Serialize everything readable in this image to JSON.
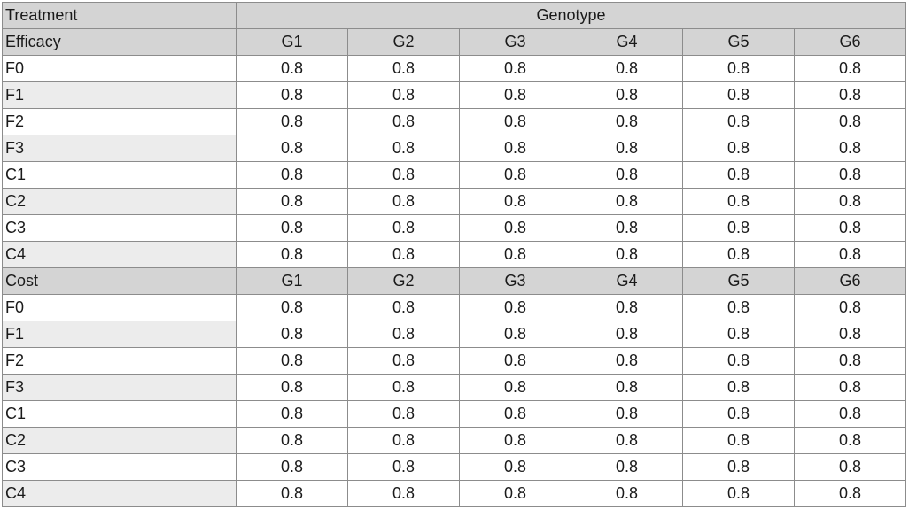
{
  "header": {
    "treatment_label": "Treatment",
    "genotype_label": "Genotype"
  },
  "sections": [
    {
      "title": "Efficacy",
      "columns": [
        "G1",
        "G2",
        "G3",
        "G4",
        "G5",
        "G6"
      ],
      "rows": [
        {
          "label": "F0",
          "values": [
            "0.8",
            "0.8",
            "0.8",
            "0.8",
            "0.8",
            "0.8"
          ]
        },
        {
          "label": "F1",
          "values": [
            "0.8",
            "0.8",
            "0.8",
            "0.8",
            "0.8",
            "0.8"
          ]
        },
        {
          "label": "F2",
          "values": [
            "0.8",
            "0.8",
            "0.8",
            "0.8",
            "0.8",
            "0.8"
          ]
        },
        {
          "label": "F3",
          "values": [
            "0.8",
            "0.8",
            "0.8",
            "0.8",
            "0.8",
            "0.8"
          ]
        },
        {
          "label": "C1",
          "values": [
            "0.8",
            "0.8",
            "0.8",
            "0.8",
            "0.8",
            "0.8"
          ]
        },
        {
          "label": "C2",
          "values": [
            "0.8",
            "0.8",
            "0.8",
            "0.8",
            "0.8",
            "0.8"
          ]
        },
        {
          "label": "C3",
          "values": [
            "0.8",
            "0.8",
            "0.8",
            "0.8",
            "0.8",
            "0.8"
          ]
        },
        {
          "label": "C4",
          "values": [
            "0.8",
            "0.8",
            "0.8",
            "0.8",
            "0.8",
            "0.8"
          ]
        }
      ]
    },
    {
      "title": "Cost",
      "columns": [
        "G1",
        "G2",
        "G3",
        "G4",
        "G5",
        "G6"
      ],
      "rows": [
        {
          "label": "F0",
          "values": [
            "0.8",
            "0.8",
            "0.8",
            "0.8",
            "0.8",
            "0.8"
          ]
        },
        {
          "label": "F1",
          "values": [
            "0.8",
            "0.8",
            "0.8",
            "0.8",
            "0.8",
            "0.8"
          ]
        },
        {
          "label": "F2",
          "values": [
            "0.8",
            "0.8",
            "0.8",
            "0.8",
            "0.8",
            "0.8"
          ]
        },
        {
          "label": "F3",
          "values": [
            "0.8",
            "0.8",
            "0.8",
            "0.8",
            "0.8",
            "0.8"
          ]
        },
        {
          "label": "C1",
          "values": [
            "0.8",
            "0.8",
            "0.8",
            "0.8",
            "0.8",
            "0.8"
          ]
        },
        {
          "label": "C2",
          "values": [
            "0.8",
            "0.8",
            "0.8",
            "0.8",
            "0.8",
            "0.8"
          ]
        },
        {
          "label": "C3",
          "values": [
            "0.8",
            "0.8",
            "0.8",
            "0.8",
            "0.8",
            "0.8"
          ]
        },
        {
          "label": "C4",
          "values": [
            "0.8",
            "0.8",
            "0.8",
            "0.8",
            "0.8",
            "0.8"
          ]
        }
      ]
    }
  ]
}
